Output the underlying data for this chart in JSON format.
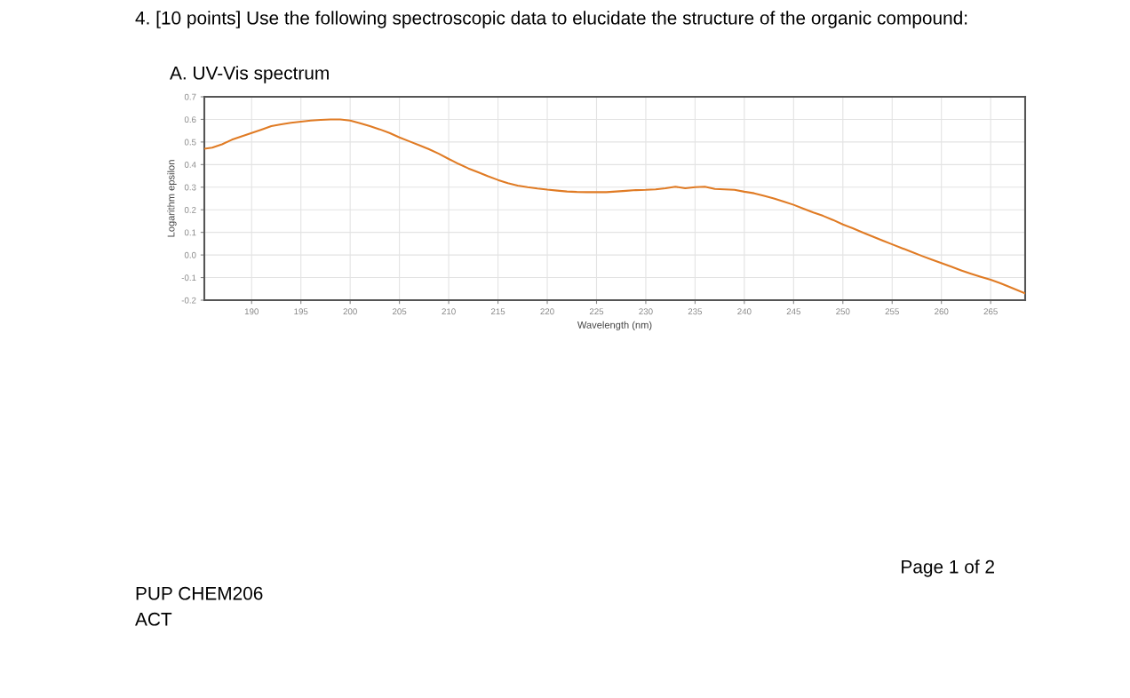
{
  "chart_data": {
    "type": "line",
    "title": "4. [10 points] Use the following spectroscopic data to elucidate the structure of the organic compound:",
    "subtitle": "A. UV-Vis spectrum",
    "xlabel": "Wavelength (nm)",
    "ylabel": "Logarithm epsilon",
    "x": [
      185.2,
      186,
      187,
      188,
      189,
      190,
      191,
      192,
      193,
      194,
      195,
      196,
      197,
      198,
      199,
      200,
      201,
      202,
      203,
      204,
      205,
      206,
      207,
      208,
      209,
      210,
      211,
      212,
      213,
      214,
      215,
      216,
      217,
      218,
      219,
      220,
      221,
      222,
      223,
      224,
      225,
      226,
      227,
      228,
      229,
      230,
      231,
      232,
      233,
      234,
      235,
      236,
      237,
      238,
      239,
      240,
      241,
      242,
      243,
      244,
      245,
      246,
      247,
      248,
      249,
      250,
      251,
      252,
      253,
      254,
      255,
      256,
      257,
      258,
      259,
      260,
      261,
      262,
      263,
      264,
      265,
      266,
      267,
      268.5
    ],
    "series": [
      {
        "color": "#e07b24",
        "values": [
          0.47,
          0.475,
          0.49,
          0.51,
          0.525,
          0.54,
          0.555,
          0.57,
          0.578,
          0.585,
          0.59,
          0.595,
          0.598,
          0.6,
          0.6,
          0.595,
          0.583,
          0.57,
          0.556,
          0.54,
          0.52,
          0.503,
          0.486,
          0.468,
          0.448,
          0.425,
          0.403,
          0.383,
          0.366,
          0.348,
          0.332,
          0.318,
          0.307,
          0.3,
          0.294,
          0.289,
          0.285,
          0.281,
          0.279,
          0.278,
          0.278,
          0.278,
          0.281,
          0.284,
          0.287,
          0.288,
          0.29,
          0.295,
          0.302,
          0.295,
          0.3,
          0.302,
          0.292,
          0.29,
          0.288,
          0.28,
          0.273,
          0.262,
          0.25,
          0.236,
          0.222,
          0.205,
          0.188,
          0.173,
          0.155,
          0.135,
          0.118,
          0.1,
          0.082,
          0.064,
          0.047,
          0.03,
          0.013,
          -0.004,
          -0.02,
          -0.036,
          -0.052,
          -0.068,
          -0.083,
          -0.097,
          -0.11,
          -0.125,
          -0.143,
          -0.17
        ]
      }
    ],
    "xlim": [
      185.2,
      268.5
    ],
    "ylim": [
      -0.2,
      0.7
    ],
    "xticks": [
      190,
      195,
      200,
      205,
      210,
      215,
      220,
      225,
      230,
      235,
      240,
      245,
      250,
      255,
      260,
      265
    ],
    "yticks": [
      {
        "value": -0.2,
        "label": "-0.2"
      },
      {
        "value": -0.1,
        "label": "-0.1"
      },
      {
        "value": 0,
        "label": "0.0"
      },
      0.1,
      0.2,
      0.3,
      0.4,
      0.5,
      0.6,
      0.7
    ],
    "grid": true,
    "marker": "none",
    "line_style": "solid",
    "annotations": [
      "Page 1 of 2",
      "PUP CHEM206",
      "ACT"
    ]
  }
}
